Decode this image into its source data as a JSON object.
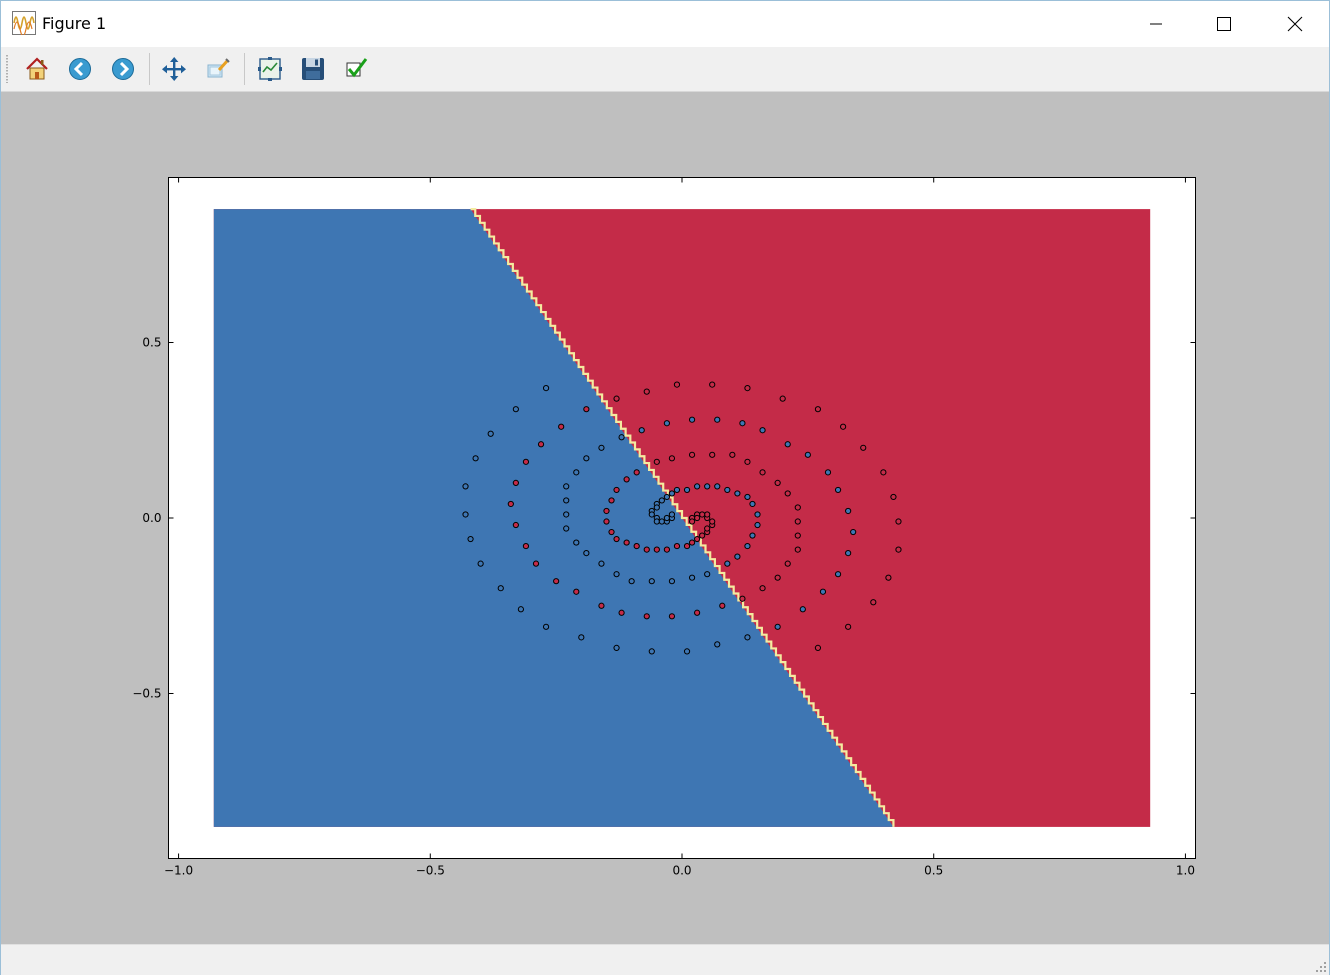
{
  "window": {
    "title": "Figure 1",
    "app_icon": "matplotlib-wave-icon",
    "controls": [
      "minimize-icon",
      "maximize-icon",
      "close-icon"
    ]
  },
  "toolbar": {
    "buttons": [
      {
        "name": "home-button",
        "icon": "home-icon"
      },
      {
        "name": "back-button",
        "icon": "back-arrow-icon"
      },
      {
        "name": "forward-button",
        "icon": "forward-arrow-icon"
      },
      {
        "name": "pan-button",
        "icon": "move-arrows-icon"
      },
      {
        "name": "zoom-button",
        "icon": "zoom-rect-icon"
      },
      {
        "name": "subplots-button",
        "icon": "subplots-icon"
      },
      {
        "name": "save-button",
        "icon": "floppy-disk-icon"
      },
      {
        "name": "edit-axis-button",
        "icon": "checkmark-icon"
      }
    ]
  },
  "colors": {
    "class_blue": "#3e76b3",
    "class_red": "#c42b48",
    "boundary": "#f4eba0",
    "canvas_bg": "#bfbfbf"
  },
  "chart_data": {
    "type": "scatter",
    "title": "",
    "xlabel": "",
    "ylabel": "",
    "xlim": [
      -1.02,
      1.02
    ],
    "ylim": [
      -0.97,
      0.97
    ],
    "xticks": [
      "−1.0",
      "−0.5",
      "0.0",
      "0.5",
      "1.0"
    ],
    "xtick_values": [
      -1.0,
      -0.5,
      0.0,
      0.5,
      1.0
    ],
    "yticks": [
      "0.5",
      "0.0",
      "−0.5"
    ],
    "ytick_values": [
      0.5,
      0.0,
      -0.5
    ],
    "decision_region": {
      "extent_x": [
        -0.93,
        0.93
      ],
      "extent_y": [
        -0.88,
        0.88
      ],
      "boundary_line": [
        [
          -0.42,
          0.88
        ],
        [
          0.42,
          -0.88
        ]
      ],
      "left_class": "blue",
      "right_class": "red"
    },
    "series": [
      {
        "color": "blue",
        "points": [
          [
            -0.27,
            0.37
          ],
          [
            -0.33,
            0.31
          ],
          [
            -0.38,
            0.24
          ],
          [
            -0.41,
            0.17
          ],
          [
            -0.43,
            0.09
          ],
          [
            -0.43,
            0.01
          ],
          [
            -0.42,
            -0.06
          ],
          [
            -0.4,
            -0.13
          ],
          [
            -0.36,
            -0.2
          ],
          [
            -0.32,
            -0.26
          ],
          [
            -0.27,
            -0.31
          ],
          [
            -0.2,
            -0.34
          ],
          [
            -0.13,
            -0.37
          ],
          [
            -0.06,
            -0.38
          ],
          [
            0.01,
            -0.38
          ],
          [
            0.07,
            -0.36
          ],
          [
            0.13,
            -0.34
          ],
          [
            0.19,
            -0.31
          ],
          [
            0.24,
            -0.26
          ],
          [
            0.28,
            -0.21
          ],
          [
            0.31,
            -0.16
          ],
          [
            0.33,
            -0.1
          ],
          [
            0.34,
            -0.04
          ],
          [
            0.33,
            0.02
          ],
          [
            0.31,
            0.08
          ],
          [
            0.29,
            0.13
          ],
          [
            0.25,
            0.18
          ],
          [
            0.21,
            0.21
          ],
          [
            0.16,
            0.25
          ],
          [
            0.12,
            0.27
          ],
          [
            0.07,
            0.28
          ],
          [
            0.02,
            0.28
          ],
          [
            -0.03,
            0.27
          ],
          [
            -0.08,
            0.25
          ],
          [
            -0.12,
            0.23
          ],
          [
            -0.16,
            0.2
          ],
          [
            -0.19,
            0.17
          ],
          [
            -0.21,
            0.13
          ],
          [
            -0.23,
            0.09
          ],
          [
            -0.23,
            0.05
          ],
          [
            -0.23,
            0.01
          ],
          [
            -0.23,
            -0.03
          ],
          [
            -0.21,
            -0.07
          ],
          [
            -0.19,
            -0.1
          ],
          [
            -0.16,
            -0.13
          ],
          [
            -0.13,
            -0.16
          ],
          [
            -0.1,
            -0.18
          ],
          [
            -0.06,
            -0.18
          ],
          [
            -0.02,
            -0.18
          ],
          [
            0.02,
            -0.17
          ],
          [
            0.05,
            -0.16
          ],
          [
            0.09,
            -0.13
          ],
          [
            0.11,
            -0.11
          ],
          [
            0.13,
            -0.08
          ],
          [
            0.14,
            -0.05
          ],
          [
            0.15,
            -0.02
          ],
          [
            0.15,
            0.01
          ],
          [
            0.14,
            0.04
          ],
          [
            0.13,
            0.06
          ],
          [
            0.11,
            0.07
          ],
          [
            0.09,
            0.08
          ],
          [
            0.07,
            0.09
          ],
          [
            0.05,
            0.09
          ],
          [
            0.03,
            0.09
          ],
          [
            0.01,
            0.08
          ],
          [
            -0.01,
            0.08
          ],
          [
            -0.02,
            0.07
          ],
          [
            -0.03,
            0.06
          ],
          [
            -0.04,
            0.05
          ],
          [
            -0.05,
            0.04
          ],
          [
            -0.05,
            0.03
          ],
          [
            -0.06,
            0.02
          ],
          [
            -0.06,
            0.01
          ],
          [
            -0.05,
            0.0
          ],
          [
            -0.05,
            -0.01
          ],
          [
            -0.04,
            -0.01
          ],
          [
            -0.03,
            -0.01
          ],
          [
            -0.03,
            0.0
          ],
          [
            -0.02,
            0.0
          ],
          [
            -0.02,
            0.01
          ]
        ]
      },
      {
        "color": "red",
        "points": [
          [
            0.27,
            -0.37
          ],
          [
            0.33,
            -0.31
          ],
          [
            0.38,
            -0.24
          ],
          [
            0.41,
            -0.17
          ],
          [
            0.43,
            -0.09
          ],
          [
            0.43,
            -0.01
          ],
          [
            0.42,
            0.06
          ],
          [
            0.4,
            0.13
          ],
          [
            0.36,
            0.2
          ],
          [
            0.32,
            0.26
          ],
          [
            0.27,
            0.31
          ],
          [
            0.2,
            0.34
          ],
          [
            0.13,
            0.37
          ],
          [
            0.06,
            0.38
          ],
          [
            -0.01,
            0.38
          ],
          [
            -0.07,
            0.36
          ],
          [
            -0.13,
            0.34
          ],
          [
            -0.19,
            0.31
          ],
          [
            -0.24,
            0.26
          ],
          [
            -0.28,
            0.21
          ],
          [
            -0.31,
            0.16
          ],
          [
            -0.33,
            0.1
          ],
          [
            -0.34,
            0.04
          ],
          [
            -0.33,
            -0.02
          ],
          [
            -0.31,
            -0.08
          ],
          [
            -0.29,
            -0.13
          ],
          [
            -0.25,
            -0.18
          ],
          [
            -0.21,
            -0.21
          ],
          [
            -0.16,
            -0.25
          ],
          [
            -0.12,
            -0.27
          ],
          [
            -0.07,
            -0.28
          ],
          [
            -0.02,
            -0.28
          ],
          [
            0.03,
            -0.27
          ],
          [
            0.08,
            -0.25
          ],
          [
            0.12,
            -0.23
          ],
          [
            0.16,
            -0.2
          ],
          [
            0.19,
            -0.17
          ],
          [
            0.21,
            -0.13
          ],
          [
            0.23,
            -0.09
          ],
          [
            0.23,
            -0.05
          ],
          [
            0.23,
            -0.01
          ],
          [
            0.23,
            0.03
          ],
          [
            0.21,
            0.07
          ],
          [
            0.19,
            0.1
          ],
          [
            0.16,
            0.13
          ],
          [
            0.13,
            0.16
          ],
          [
            0.1,
            0.18
          ],
          [
            0.06,
            0.18
          ],
          [
            0.02,
            0.18
          ],
          [
            -0.02,
            0.17
          ],
          [
            -0.05,
            0.16
          ],
          [
            -0.09,
            0.13
          ],
          [
            -0.11,
            0.11
          ],
          [
            -0.13,
            0.08
          ],
          [
            -0.14,
            0.05
          ],
          [
            -0.15,
            0.02
          ],
          [
            -0.15,
            -0.01
          ],
          [
            -0.14,
            -0.04
          ],
          [
            -0.13,
            -0.06
          ],
          [
            -0.11,
            -0.07
          ],
          [
            -0.09,
            -0.08
          ],
          [
            -0.07,
            -0.09
          ],
          [
            -0.05,
            -0.09
          ],
          [
            -0.03,
            -0.09
          ],
          [
            -0.01,
            -0.08
          ],
          [
            0.01,
            -0.08
          ],
          [
            0.02,
            -0.07
          ],
          [
            0.03,
            -0.06
          ],
          [
            0.04,
            -0.05
          ],
          [
            0.05,
            -0.04
          ],
          [
            0.05,
            -0.03
          ],
          [
            0.06,
            -0.02
          ],
          [
            0.06,
            -0.01
          ],
          [
            0.05,
            0.0
          ],
          [
            0.05,
            0.01
          ],
          [
            0.04,
            0.01
          ],
          [
            0.03,
            0.01
          ],
          [
            0.03,
            0.0
          ],
          [
            0.02,
            0.0
          ],
          [
            0.02,
            -0.01
          ]
        ]
      }
    ]
  }
}
